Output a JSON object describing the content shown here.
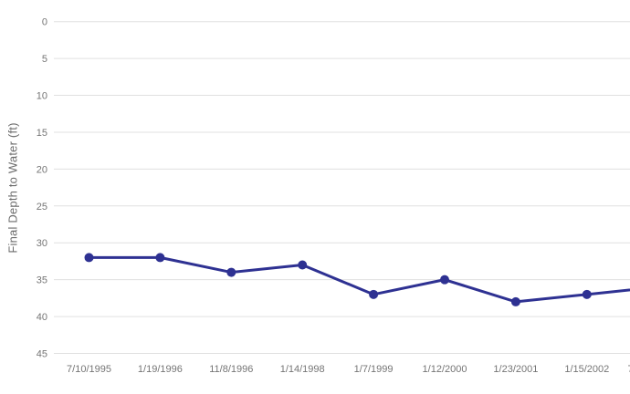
{
  "chart_data": {
    "type": "line",
    "title": "",
    "xlabel": "",
    "ylabel": "Final Depth to Water (ft)",
    "categories": [
      "7/10/1995",
      "1/19/1996",
      "11/8/1996",
      "1/14/1998",
      "1/7/1999",
      "1/12/2000",
      "1/23/2001",
      "1/15/2002"
    ],
    "series": [
      {
        "name": "Final Depth to Water",
        "values": [
          32,
          32,
          34,
          33,
          37,
          35,
          38,
          37
        ]
      }
    ],
    "offscreen_next_value": 36,
    "offscreen_next_label_fragment": "7",
    "ylim": [
      0,
      45
    ],
    "yticks": [
      0,
      5,
      10,
      15,
      20,
      25,
      30,
      35,
      40,
      45
    ],
    "y_axis_inverted": true,
    "grid": true,
    "legend": "none",
    "colors": {
      "line": "#2e3192",
      "point": "#2e3192",
      "gridline": "#e0e0e0",
      "tick_text": "#757575",
      "axis_title_text": "#6b6b6b",
      "background": "#ffffff"
    }
  }
}
